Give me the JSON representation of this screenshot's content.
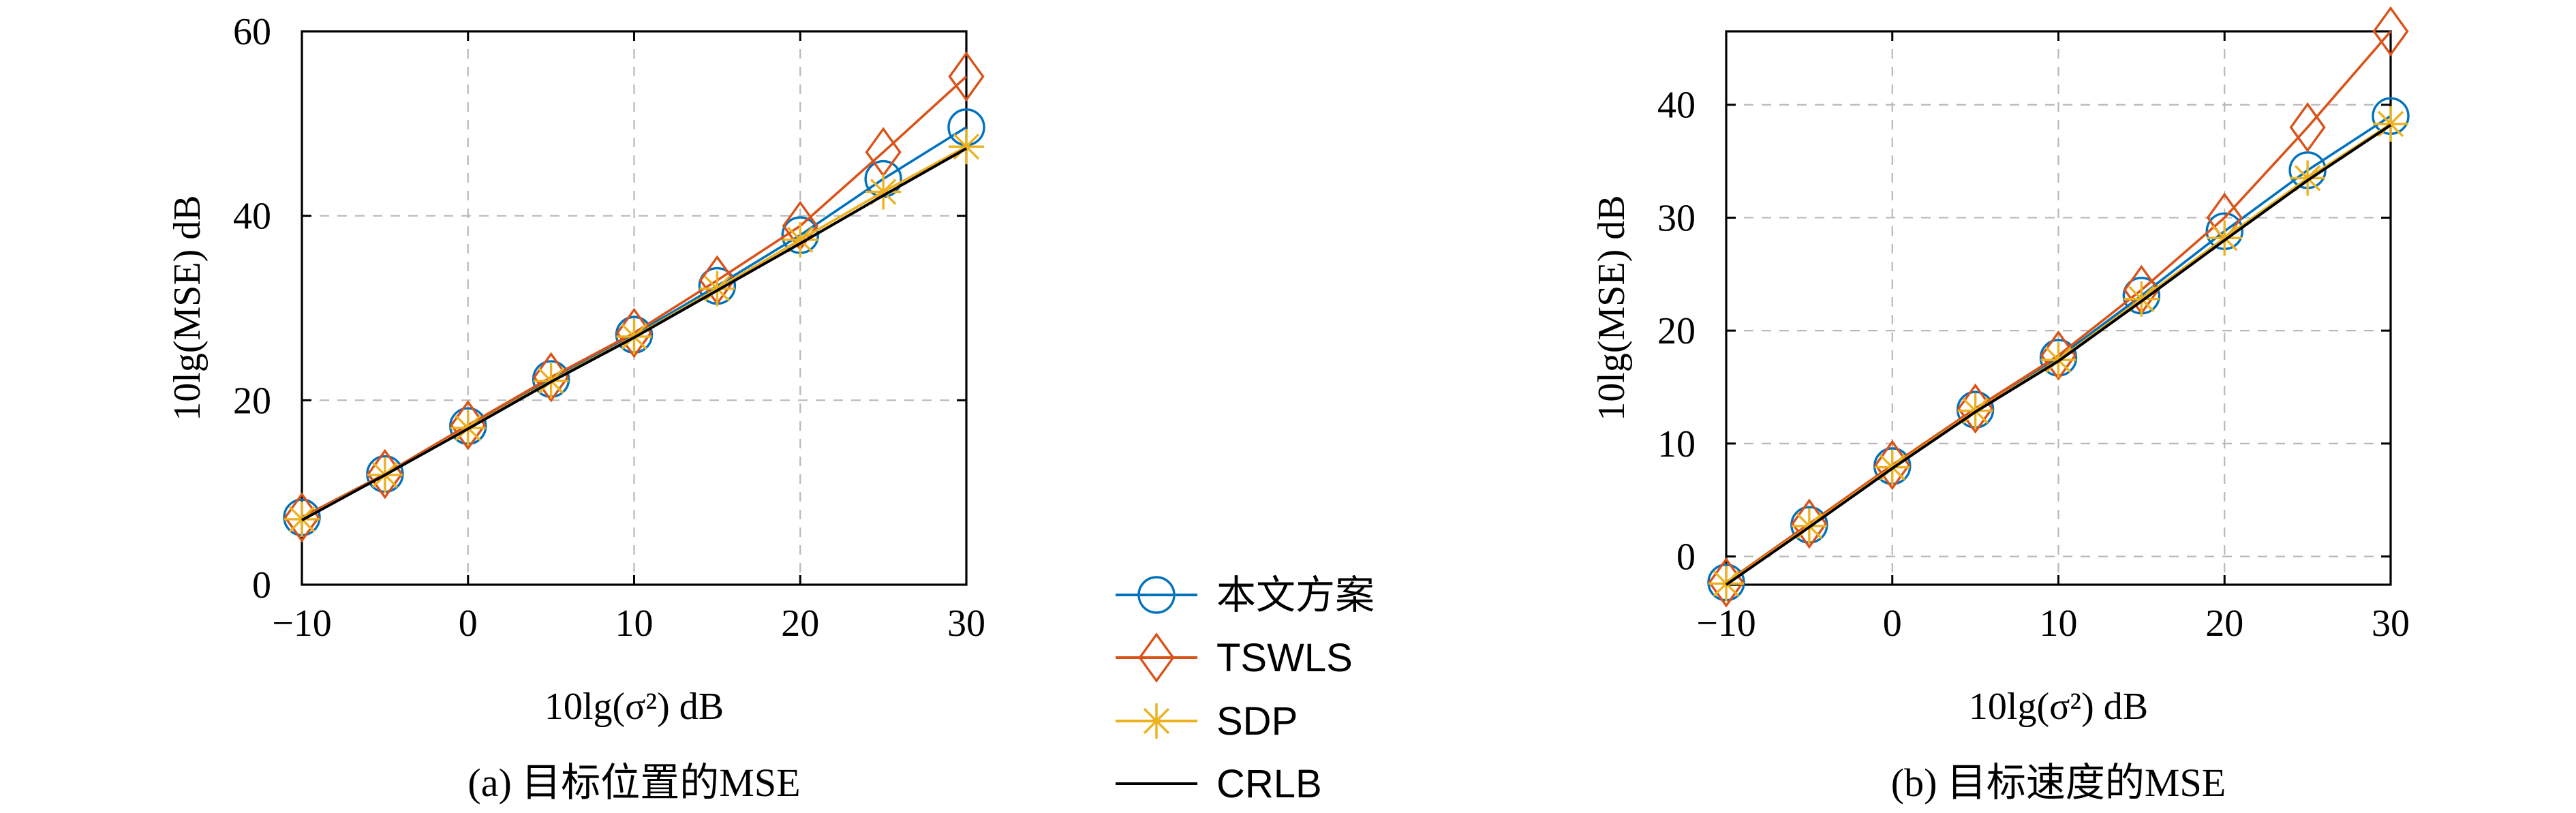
{
  "chart_data": [
    {
      "type": "line",
      "caption": "(a) 目标位置的MSE",
      "xlabel": "10lg(σ²) dB",
      "ylabel": "10lg(MSE) dB",
      "xlim": [
        -10,
        30
      ],
      "ylim": [
        0,
        60
      ],
      "xticks": [
        -10,
        0,
        10,
        20,
        30
      ],
      "yticks": [
        0,
        20,
        40,
        60
      ],
      "xtick_labels": [
        "−10",
        "0",
        "10",
        "20",
        "30"
      ],
      "ytick_labels": [
        "0",
        "20",
        "40",
        "60"
      ],
      "grid": true,
      "x": [
        -10,
        -5,
        0,
        5,
        10,
        15,
        20,
        25,
        30
      ],
      "series": [
        {
          "name": "本文方案",
          "marker": "circle",
          "color": "#0072BD",
          "values": [
            7.3,
            12.0,
            17.2,
            22.3,
            27.1,
            32.4,
            37.9,
            44.0,
            49.6
          ]
        },
        {
          "name": "TSWLS",
          "marker": "diamond",
          "color": "#D95319",
          "values": [
            7.3,
            12.0,
            17.3,
            22.5,
            27.3,
            33.0,
            38.9,
            46.9,
            55.1
          ]
        },
        {
          "name": "SDP",
          "marker": "asterisk",
          "color": "#EDB120",
          "values": [
            7.1,
            11.9,
            17.0,
            22.1,
            26.9,
            32.1,
            37.4,
            42.6,
            47.5
          ]
        },
        {
          "name": "CRLB",
          "marker": "none",
          "color": "#000000",
          "values": [
            7.0,
            11.9,
            16.9,
            22.0,
            26.8,
            31.9,
            37.0,
            42.2,
            47.3
          ]
        }
      ]
    },
    {
      "type": "line",
      "caption": "(b) 目标速度的MSE",
      "xlabel": "10lg(σ²) dB",
      "ylabel": "10lg(MSE) dB",
      "xlim": [
        -10,
        30
      ],
      "ylim": [
        -2.5,
        46.5
      ],
      "xticks": [
        -10,
        0,
        10,
        20,
        30
      ],
      "yticks": [
        0,
        10,
        20,
        30,
        40
      ],
      "xtick_labels": [
        "−10",
        "0",
        "10",
        "20",
        "30"
      ],
      "ytick_labels": [
        "0",
        "10",
        "20",
        "30",
        "40"
      ],
      "grid": true,
      "x": [
        -10,
        -5,
        0,
        5,
        10,
        15,
        20,
        25,
        30
      ],
      "series": [
        {
          "name": "本文方案",
          "marker": "circle",
          "color": "#0072BD",
          "values": [
            -2.3,
            2.8,
            8.0,
            13.0,
            17.6,
            23.1,
            28.8,
            34.2,
            39.0
          ]
        },
        {
          "name": "TSWLS",
          "marker": "diamond",
          "color": "#D95319",
          "values": [
            -2.3,
            2.9,
            8.1,
            13.1,
            17.8,
            23.6,
            30.0,
            38.0,
            46.5
          ]
        },
        {
          "name": "SDP",
          "marker": "asterisk",
          "color": "#EDB120",
          "values": [
            -2.4,
            2.7,
            7.9,
            12.9,
            17.4,
            22.8,
            28.2,
            33.5,
            38.3
          ]
        },
        {
          "name": "CRLB",
          "marker": "none",
          "color": "#000000",
          "values": [
            -2.5,
            2.6,
            7.8,
            12.8,
            17.3,
            22.6,
            28.0,
            33.3,
            38.2
          ]
        }
      ]
    }
  ],
  "legend": {
    "placement": "center-bottom",
    "entries": [
      {
        "label": "本文方案",
        "marker": "circle",
        "color": "#0072BD"
      },
      {
        "label": "TSWLS",
        "marker": "diamond",
        "color": "#D95319"
      },
      {
        "label": "SDP",
        "marker": "asterisk",
        "color": "#EDB120"
      },
      {
        "label": "CRLB",
        "marker": "none",
        "color": "#000000"
      }
    ]
  }
}
